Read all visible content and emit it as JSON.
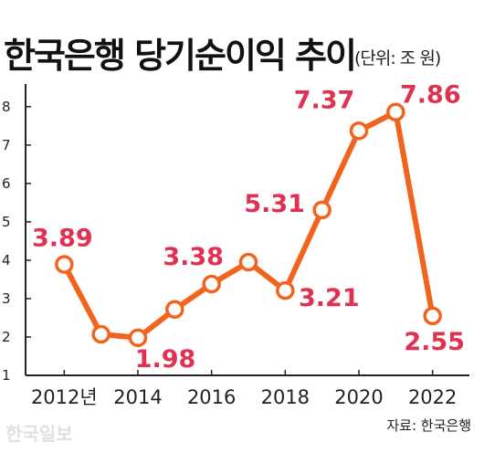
{
  "title": "한국은행 당기순이익 추이",
  "unit": "(단위: 조 원)",
  "source": "자료: 한국은행",
  "watermark": "한국일보",
  "colors": {
    "line": "#f0641e",
    "label": "#e03250",
    "axis": "#222222"
  },
  "chart_data": {
    "type": "line",
    "title": "한국은행 당기순이익 추이",
    "xlabel": "",
    "ylabel": "",
    "x": [
      2012,
      2013,
      2014,
      2015,
      2016,
      2017,
      2018,
      2019,
      2020,
      2021,
      2022
    ],
    "values": [
      3.89,
      2.07,
      1.98,
      2.72,
      3.38,
      3.95,
      3.21,
      5.31,
      7.37,
      7.86,
      2.55
    ],
    "xticks": [
      "2012년",
      "2014",
      "2016",
      "2018",
      "2020",
      "2022"
    ],
    "xtick_years": [
      2012,
      2014,
      2016,
      2018,
      2020,
      2022
    ],
    "yticks": [
      1,
      2,
      3,
      4,
      5,
      6,
      7,
      8
    ],
    "ylim": [
      1,
      8.4
    ],
    "xlim": [
      2011,
      2023
    ],
    "grid": false,
    "legend": "none",
    "data_labels": [
      {
        "x": 2012,
        "text": "3.89"
      },
      {
        "x": 2014,
        "text": "1.98"
      },
      {
        "x": 2016,
        "text": "3.38"
      },
      {
        "x": 2018,
        "text": "3.21"
      },
      {
        "x": 2019,
        "text": "5.31"
      },
      {
        "x": 2020,
        "text": "7.37"
      },
      {
        "x": 2021,
        "text": "7.86"
      },
      {
        "x": 2022,
        "text": "2.55"
      }
    ]
  }
}
